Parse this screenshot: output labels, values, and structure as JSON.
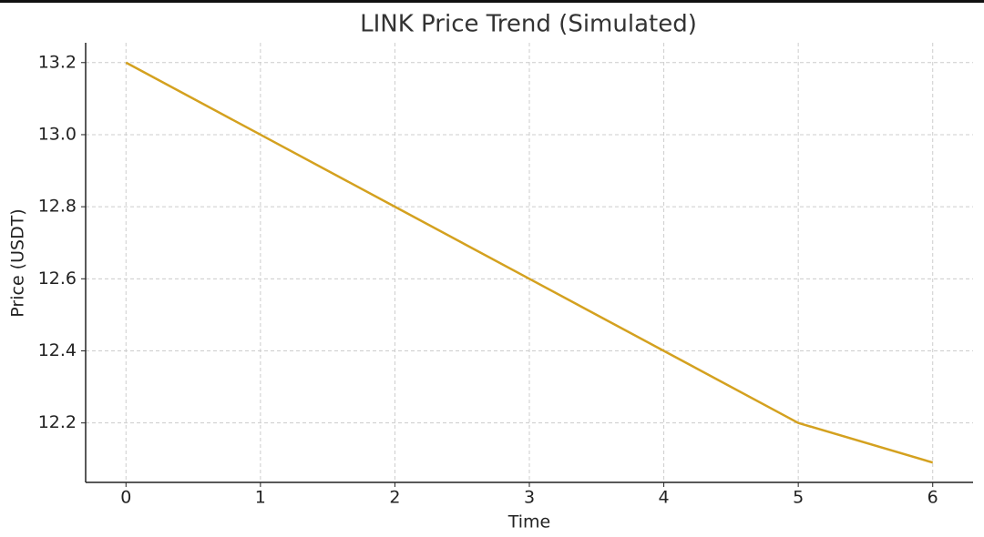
{
  "chart_data": {
    "type": "line",
    "title": "LINK Price Trend (Simulated)",
    "x_label": "Time",
    "y_label": "Price (USDT)",
    "x": [
      0,
      1,
      2,
      3,
      4,
      5,
      6
    ],
    "series": [
      {
        "name": "LINK",
        "color": "#d4a11f",
        "values": [
          13.2,
          13.0,
          12.8,
          12.6,
          12.4,
          12.2,
          12.09
        ]
      }
    ],
    "xlim": [
      -0.3,
      6.3
    ],
    "xticks": [
      0,
      1,
      2,
      3,
      4,
      5,
      6
    ],
    "ylim": [
      12.035,
      13.255
    ],
    "yticks": [
      12.2,
      12.4,
      12.6,
      12.8,
      {
        "value": 13,
        "label": "13.0"
      },
      13.2
    ],
    "grid": true
  }
}
